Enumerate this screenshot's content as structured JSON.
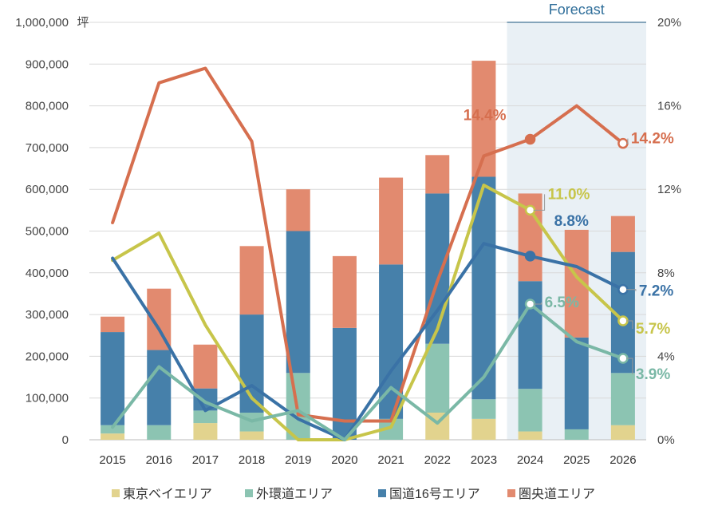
{
  "chart_data": {
    "type": "bar",
    "title": "",
    "xlabel": "",
    "ylabel": "坪",
    "categories": [
      "2015",
      "2016",
      "2017",
      "2018",
      "2019",
      "2020",
      "2021",
      "2022",
      "2023",
      "2024",
      "2025",
      "2026"
    ],
    "ylim": [
      0,
      1000000
    ],
    "y_ticks": [
      "1,000,000",
      "900,000",
      "800,000",
      "700,000",
      "600,000",
      "500,000",
      "400,000",
      "300,000",
      "200,000",
      "100,000",
      "0"
    ],
    "y2lim": [
      0,
      20
    ],
    "y2_ticks": [
      "20%",
      "16%",
      "12%",
      "8%",
      "4%",
      "0%"
    ],
    "forecast_label": "Forecast",
    "forecast_from": "2024",
    "bar_series": [
      {
        "name": "東京ベイエリア",
        "color": "#e2d38e",
        "values": [
          15000,
          0,
          40000,
          20000,
          0,
          0,
          0,
          65000,
          50000,
          20000,
          0,
          35000
        ]
      },
      {
        "name": "外環道エリア",
        "color": "#8cc4b2",
        "values": [
          20000,
          35000,
          30000,
          45000,
          160000,
          0,
          50000,
          165000,
          47000,
          102000,
          25000,
          125000
        ]
      },
      {
        "name": "国道16号エリア",
        "color": "#4680aa",
        "values": [
          223000,
          180000,
          53000,
          235000,
          340000,
          268000,
          370000,
          360000,
          533000,
          258000,
          220000,
          290000
        ]
      },
      {
        "name": "圏央道エリア",
        "color": "#e28a6f",
        "values": [
          37000,
          147000,
          105000,
          164000,
          100000,
          172000,
          208000,
          92000,
          278000,
          210000,
          258000,
          86000
        ]
      }
    ],
    "line_series": [
      {
        "name": "圏央道エリア",
        "color": "#d66f4f",
        "values": [
          10.4,
          17.1,
          17.8,
          14.3,
          1.2,
          0.9,
          0.9,
          7.6,
          13.6,
          14.4,
          16.0,
          14.2
        ]
      },
      {
        "name": "東京ベイエリア",
        "color": "#c7c54a",
        "values": [
          8.6,
          9.9,
          5.5,
          2.0,
          0.0,
          0.0,
          0.6,
          5.3,
          12.2,
          11.0,
          7.8,
          5.7
        ]
      },
      {
        "name": "国道16号エリア",
        "color": "#3a72a6",
        "values": [
          8.7,
          5.3,
          1.4,
          2.6,
          1.0,
          0.0,
          3.3,
          6.2,
          9.4,
          8.8,
          8.3,
          7.2
        ]
      },
      {
        "name": "外環道エリア",
        "color": "#7ab8a6",
        "values": [
          0.6,
          3.5,
          1.8,
          0.9,
          1.4,
          0.0,
          2.5,
          0.8,
          3.0,
          6.5,
          4.7,
          3.9
        ]
      }
    ],
    "end_labels": [
      {
        "text": "14.4%",
        "series": 0,
        "category": "2024",
        "color": "#d66f4f",
        "hollow": false
      },
      {
        "text": "14.2%",
        "series": 0,
        "category": "2026",
        "color": "#d66f4f",
        "hollow": true
      },
      {
        "text": "11.0%",
        "series": 1,
        "category": "2024",
        "color": "#c7c54a",
        "hollow": true
      },
      {
        "text": "5.7%",
        "series": 1,
        "category": "2026",
        "color": "#c7c54a",
        "hollow": true
      },
      {
        "text": "8.8%",
        "series": 2,
        "category": "2024",
        "color": "#3a72a6",
        "hollow": false
      },
      {
        "text": "7.2%",
        "series": 2,
        "category": "2026",
        "color": "#3a72a6",
        "hollow": true
      },
      {
        "text": "6.5%",
        "series": 3,
        "category": "2024",
        "color": "#7ab8a6",
        "hollow": true
      },
      {
        "text": "3.9%",
        "series": 3,
        "category": "2026",
        "color": "#7ab8a6",
        "hollow": true
      }
    ],
    "legend": [
      {
        "label": "東京ベイエリア",
        "color": "#e2d38e"
      },
      {
        "label": "外環道エリア",
        "color": "#8cc4b2"
      },
      {
        "label": "国道16号エリア",
        "color": "#4680aa"
      },
      {
        "label": "圏央道エリア",
        "color": "#e28a6f"
      }
    ],
    "legend_position": "bottom",
    "grid": true
  }
}
